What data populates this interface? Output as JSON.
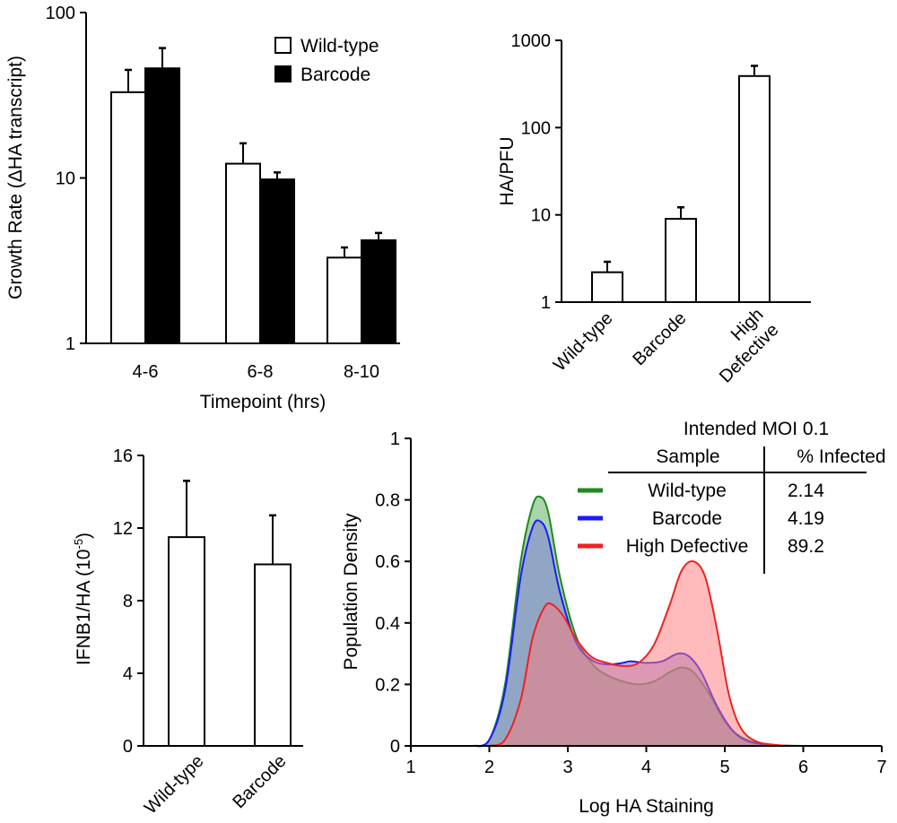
{
  "chart_data": [
    {
      "id": "panel-a",
      "type": "bar",
      "title": "",
      "xlabel": "Timepoint (hrs)",
      "ylabel": "Growth Rate (ΔHA transcript)",
      "yscale": "log",
      "ylim": [
        1,
        100
      ],
      "yticks": [
        1,
        10,
        100
      ],
      "ytick_labels": [
        "1",
        "10",
        "100"
      ],
      "categories": [
        "4-6",
        "6-8",
        "8-10"
      ],
      "legend_position": "top-right",
      "series": [
        {
          "name": "Wild-type",
          "color": "#ffffff",
          "values": [
            33,
            12.2,
            3.3
          ],
          "errors": [
            12,
            4,
            0.5
          ]
        },
        {
          "name": "Barcode",
          "color": "#000000",
          "values": [
            46,
            9.8,
            4.2
          ],
          "errors": [
            15,
            1,
            0.45
          ]
        }
      ]
    },
    {
      "id": "panel-b",
      "type": "bar",
      "title": "",
      "xlabel": "",
      "ylabel": "HA/PFU",
      "yscale": "log",
      "ylim": [
        1,
        1000
      ],
      "yticks": [
        1,
        10,
        100,
        1000
      ],
      "ytick_labels": [
        "1",
        "10",
        "100",
        "1000"
      ],
      "categories": [
        "Wild-type",
        "Barcode",
        "High Defective"
      ],
      "category_lines": [
        [
          "Wild-type"
        ],
        [
          "Barcode"
        ],
        [
          "High",
          "Defective"
        ]
      ],
      "values": [
        2.2,
        9.0,
        390
      ],
      "errors": [
        0.7,
        3.2,
        120
      ]
    },
    {
      "id": "panel-c",
      "type": "bar",
      "title": "",
      "xlabel": "",
      "ylabel_main": "IFNB1/HA (10",
      "ylabel_sup": "-5",
      "ylabel_end": ")",
      "ylim": [
        0,
        16
      ],
      "yticks": [
        0,
        4,
        8,
        12,
        16
      ],
      "ytick_labels": [
        "0",
        "4",
        "8",
        "12",
        "16"
      ],
      "categories": [
        "Wild-type",
        "Barcode"
      ],
      "values": [
        11.5,
        10.0
      ],
      "errors": [
        3.1,
        2.7
      ]
    },
    {
      "id": "panel-d",
      "type": "area",
      "title": "",
      "xlabel": "Log HA Staining",
      "ylabel": "Population Density",
      "xlim": [
        1,
        7
      ],
      "ylim": [
        0,
        1
      ],
      "xticks": [
        1,
        2,
        3,
        4,
        5,
        6,
        7
      ],
      "xtick_labels": [
        "1",
        "2",
        "3",
        "4",
        "5",
        "6",
        "7"
      ],
      "yticks": [
        0,
        0.2,
        0.4,
        0.6,
        0.8,
        1
      ],
      "ytick_labels": [
        "0",
        "0.2",
        "0.4",
        "0.6",
        "0.8",
        "1"
      ],
      "series": [
        {
          "name": "Wild-type",
          "color": "#1f8a1f",
          "fill": "#55aa55",
          "x": [
            1.8,
            2.0,
            2.2,
            2.4,
            2.55,
            2.65,
            2.75,
            2.9,
            3.1,
            3.3,
            3.5,
            3.7,
            3.9,
            4.1,
            4.3,
            4.45,
            4.6,
            4.8,
            5.0,
            5.2,
            5.5,
            6.0
          ],
          "y": [
            0.0,
            0.02,
            0.2,
            0.6,
            0.78,
            0.81,
            0.76,
            0.55,
            0.36,
            0.27,
            0.23,
            0.21,
            0.2,
            0.21,
            0.24,
            0.255,
            0.24,
            0.17,
            0.08,
            0.03,
            0.005,
            0.0
          ]
        },
        {
          "name": "Barcode",
          "color": "#1a1aff",
          "fill": "#7777dd",
          "x": [
            1.8,
            2.0,
            2.2,
            2.4,
            2.55,
            2.65,
            2.75,
            2.9,
            3.1,
            3.3,
            3.5,
            3.7,
            3.8,
            4.0,
            4.2,
            4.4,
            4.55,
            4.7,
            4.9,
            5.1,
            5.3,
            5.6,
            6.0
          ],
          "y": [
            0.0,
            0.02,
            0.18,
            0.55,
            0.71,
            0.73,
            0.68,
            0.5,
            0.34,
            0.28,
            0.265,
            0.27,
            0.275,
            0.27,
            0.275,
            0.3,
            0.29,
            0.24,
            0.13,
            0.05,
            0.015,
            0.002,
            0.0
          ]
        },
        {
          "name": "High Defective",
          "color": "#ee2222",
          "fill": "#ff7777",
          "x": [
            2.0,
            2.2,
            2.4,
            2.55,
            2.7,
            2.8,
            2.95,
            3.1,
            3.3,
            3.5,
            3.7,
            3.9,
            4.1,
            4.3,
            4.45,
            4.6,
            4.75,
            4.9,
            5.05,
            5.2,
            5.4,
            5.7,
            6.0
          ],
          "y": [
            0.0,
            0.02,
            0.15,
            0.35,
            0.45,
            0.46,
            0.42,
            0.35,
            0.29,
            0.27,
            0.26,
            0.27,
            0.33,
            0.46,
            0.57,
            0.6,
            0.55,
            0.38,
            0.17,
            0.06,
            0.015,
            0.002,
            0.0
          ]
        }
      ],
      "inset_table": {
        "title": "Intended MOI 0.1",
        "headers": [
          "Sample",
          "% Infected"
        ],
        "rows": [
          {
            "sample": "Wild-type",
            "infected": "2.14"
          },
          {
            "sample": "Barcode",
            "infected": "4.19"
          },
          {
            "sample": "High Defective",
            "infected": "89.2"
          }
        ]
      }
    }
  ]
}
